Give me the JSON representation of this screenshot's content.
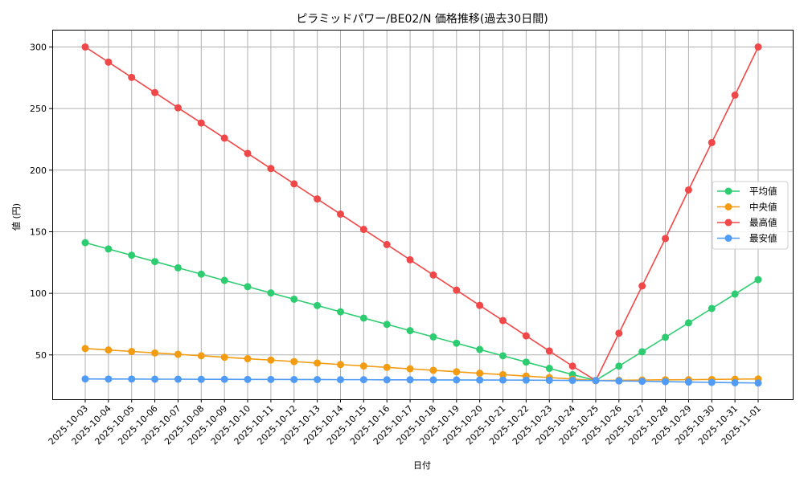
{
  "chart_data": {
    "type": "line",
    "title": "ピラミッドパワー/BE02/N 価格推移(過去30日間)",
    "xlabel": "日付",
    "ylabel": "値 (円)",
    "ylim": [
      14,
      314
    ],
    "yticks": [
      50,
      100,
      150,
      200,
      250,
      300
    ],
    "grid": true,
    "legend_position": "center right",
    "categories": [
      "2025-10-03",
      "2025-10-04",
      "2025-10-05",
      "2025-10-06",
      "2025-10-07",
      "2025-10-08",
      "2025-10-09",
      "2025-10-10",
      "2025-10-11",
      "2025-10-12",
      "2025-10-13",
      "2025-10-14",
      "2025-10-15",
      "2025-10-16",
      "2025-10-17",
      "2025-10-18",
      "2025-10-19",
      "2025-10-20",
      "2025-10-21",
      "2025-10-22",
      "2025-10-23",
      "2025-10-24",
      "2025-10-25",
      "2025-10-26",
      "2025-10-27",
      "2025-10-28",
      "2025-10-29",
      "2025-10-30",
      "2025-10-31",
      "2025-11-01"
    ],
    "series": [
      {
        "name": "平均値",
        "color": "#2ecc71",
        "values": [
          141.1,
          136.0,
          130.9,
          125.8,
          120.7,
          115.6,
          110.5,
          105.4,
          100.3,
          95.2,
          90.1,
          85.0,
          79.9,
          74.8,
          69.7,
          64.6,
          59.5,
          54.4,
          49.3,
          44.2,
          39.1,
          34.0,
          29.2,
          40.9,
          52.6,
          64.3,
          76.0,
          87.7,
          99.4,
          111.1
        ]
      },
      {
        "name": "中央値",
        "color": "#f39c12",
        "values": [
          55.2,
          54.0,
          52.8,
          51.6,
          50.5,
          49.3,
          48.1,
          46.9,
          45.8,
          44.6,
          43.4,
          42.2,
          41.0,
          39.9,
          38.7,
          37.5,
          36.3,
          35.1,
          34.0,
          32.8,
          31.6,
          30.4,
          29.2,
          29.4,
          29.6,
          29.8,
          29.9,
          30.1,
          30.3,
          30.5
        ]
      },
      {
        "name": "最高値",
        "color": "#f04848",
        "values": [
          300.0,
          287.7,
          275.3,
          263.0,
          250.6,
          238.3,
          226.0,
          213.6,
          201.3,
          188.9,
          176.6,
          164.3,
          151.9,
          139.6,
          127.2,
          114.9,
          102.6,
          90.2,
          77.9,
          65.5,
          53.2,
          40.9,
          29.2,
          67.6,
          106.0,
          144.5,
          183.9,
          222.4,
          260.9,
          300.0
        ]
      },
      {
        "name": "最安値",
        "color": "#4f9bf5",
        "values": [
          30.5,
          30.4,
          30.4,
          30.3,
          30.3,
          30.2,
          30.2,
          30.1,
          30.1,
          30.0,
          30.0,
          29.9,
          29.9,
          29.8,
          29.8,
          29.7,
          29.7,
          29.6,
          29.6,
          29.5,
          29.4,
          29.3,
          29.2,
          28.9,
          28.6,
          28.3,
          28.0,
          27.7,
          27.4,
          27.2
        ]
      }
    ]
  }
}
